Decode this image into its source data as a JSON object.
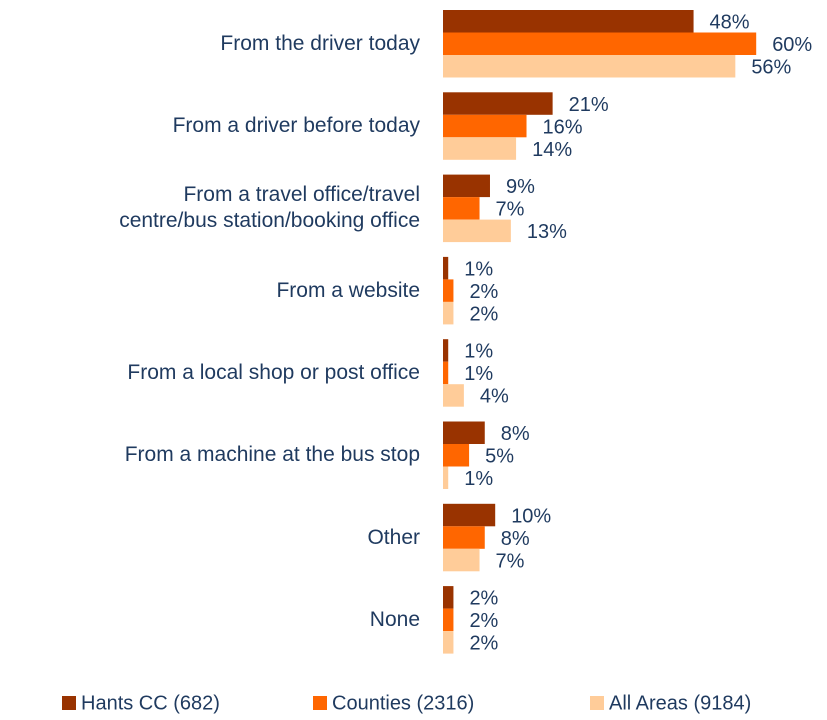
{
  "chart_data": {
    "type": "bar",
    "orientation": "horizontal",
    "categories": [
      "From the driver today",
      "From a driver before today",
      "From a travel office/travel\ncentre/bus station/booking office",
      "From a website",
      "From a local shop or post office",
      "From a machine at the bus stop",
      "Other",
      "None"
    ],
    "series": [
      {
        "name": "Hants CC (682)",
        "color": "#993300",
        "values": [
          48,
          21,
          9,
          1,
          1,
          8,
          10,
          2
        ],
        "value_labels": [
          "48%",
          "21%",
          "9%",
          "1%",
          "1%",
          "8%",
          "10%",
          "2%"
        ]
      },
      {
        "name": "Counties (2316)",
        "color": "#ff6600",
        "values": [
          60,
          16,
          7,
          2,
          1,
          5,
          8,
          2
        ],
        "value_labels": [
          "60%",
          "16%",
          "7%",
          "2%",
          "1%",
          "5%",
          "8%",
          "2%"
        ]
      },
      {
        "name": "All Areas (9184)",
        "color": "#ffcc99",
        "values": [
          56,
          14,
          13,
          2,
          4,
          1,
          7,
          2
        ],
        "value_labels": [
          "56%",
          "14%",
          "13%",
          "2%",
          "4%",
          "1%",
          "7%",
          "2%"
        ]
      }
    ],
    "legend": "bottom"
  }
}
